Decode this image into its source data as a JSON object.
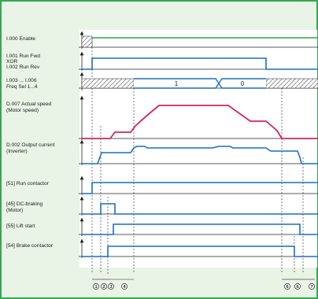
{
  "colors": {
    "frame": "#34a853",
    "panel": "#e9f4e6",
    "blue": "#1a6fc0",
    "green": "#2aa744",
    "red": "#d6245a",
    "axis": "#222222"
  },
  "signals": [
    {
      "id": "enable",
      "lines": [
        "I.000 Enable"
      ]
    },
    {
      "id": "run",
      "lines": [
        "I.001 Run Fwd",
        "XOR",
        "I.002 Run Rev"
      ]
    },
    {
      "id": "freq",
      "lines": [
        "I.003 ... I.006",
        "Freq Sel 1...4"
      ]
    },
    {
      "id": "speed",
      "lines": [
        "D.007 Actual speed",
        "(Motor speed)"
      ]
    },
    {
      "id": "current",
      "lines": [
        "D.002 Output current",
        "(Inverter)"
      ]
    },
    {
      "id": "run-contactor",
      "lines": [
        "[51] Run contactor"
      ]
    },
    {
      "id": "dc-braking",
      "lines": [
        "[45] DC-braking",
        "(Motor)"
      ]
    },
    {
      "id": "lift-start",
      "lines": [
        "[55] Lift start"
      ]
    },
    {
      "id": "brake-contactor",
      "lines": [
        "[54] Brake contactor"
      ]
    }
  ],
  "freq_segments": [
    "1",
    "0"
  ],
  "time_markers": [
    "1",
    "2",
    "3",
    "4",
    "6",
    "6",
    "7"
  ]
}
